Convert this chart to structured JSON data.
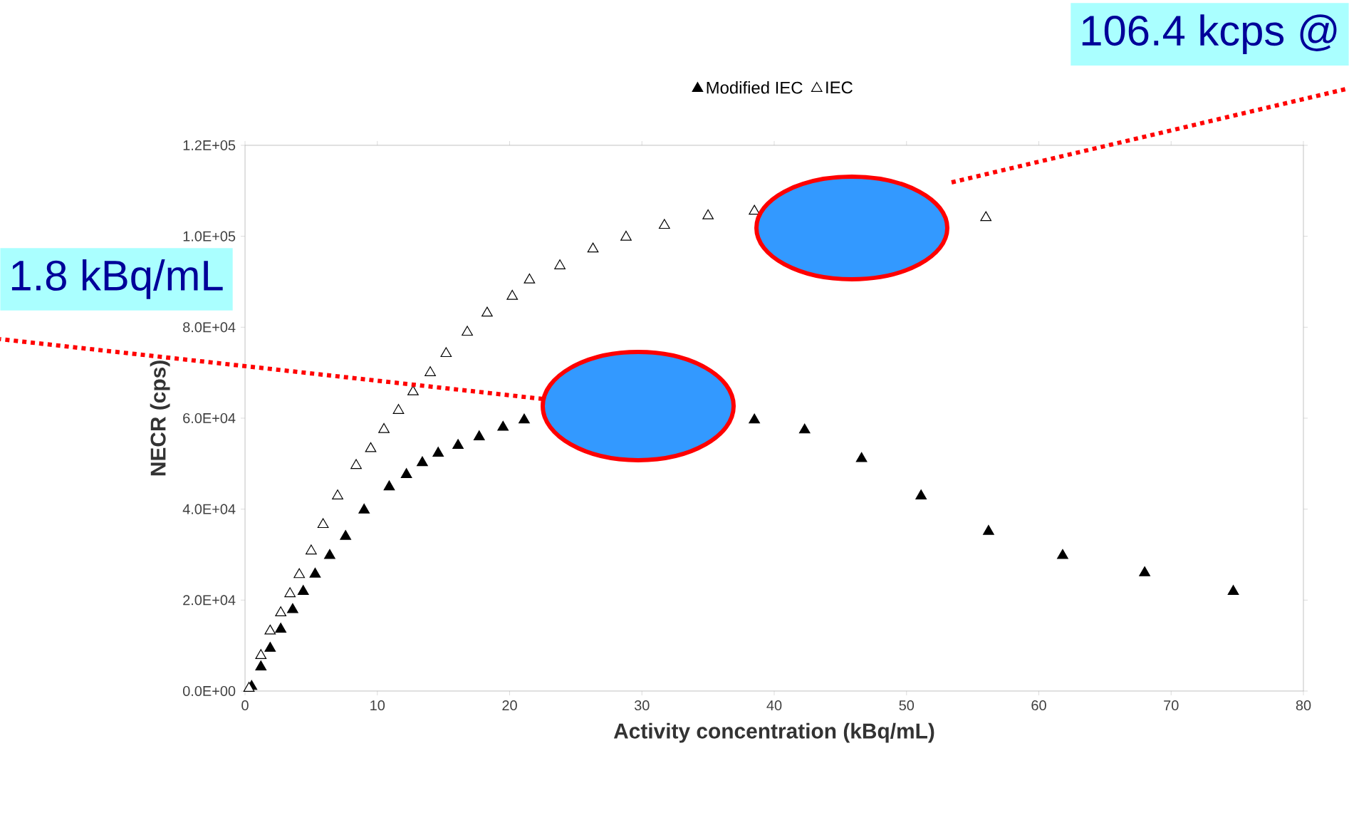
{
  "chart_data": {
    "type": "scatter",
    "xlabel": "Activity concentration (kBq/mL)",
    "ylabel": "NECR (cps)",
    "legend": "top",
    "marker": "triangle",
    "grid": false,
    "xlim": [
      0,
      80
    ],
    "xticks": [
      0,
      10,
      20,
      30,
      40,
      50,
      60,
      70,
      80
    ],
    "ylim": [
      0,
      120000
    ],
    "yticks": [
      {
        "value": 0,
        "label": "0.0E+00"
      },
      {
        "value": 20000,
        "label": "2.0E+04"
      },
      {
        "value": 40000,
        "label": "4.0E+04"
      },
      {
        "value": 60000,
        "label": "6.0E+04"
      },
      {
        "value": 80000,
        "label": "8.0E+04"
      },
      {
        "value": 100000,
        "label": "1.0E+05"
      },
      {
        "value": 120000,
        "label": "1.2E+05"
      }
    ],
    "series": [
      {
        "name": "Modified IEC",
        "color": "#000000",
        "x": [
          0.5,
          1.2,
          1.9,
          2.7,
          3.6,
          4.4,
          5.3,
          6.4,
          7.6,
          9.0,
          10.9,
          12.2,
          13.4,
          14.6,
          16.1,
          17.7,
          19.5,
          21.1,
          38.5,
          42.3,
          46.6,
          51.1,
          56.2,
          61.8,
          68.0,
          74.7
        ],
        "values": [
          1000,
          5300,
          9400,
          13600,
          17900,
          21900,
          25700,
          29800,
          34000,
          39800,
          44900,
          47600,
          50200,
          52300,
          54000,
          55900,
          58000,
          59600,
          59600,
          57400,
          51100,
          42900,
          35100,
          29800,
          26000,
          21900
        ]
      },
      {
        "name": "IEC",
        "color": "#ffffff",
        "x": [
          0.3,
          1.2,
          1.9,
          2.7,
          3.4,
          4.1,
          5.0,
          5.9,
          7.0,
          8.4,
          9.5,
          10.5,
          11.6,
          12.7,
          14.0,
          15.2,
          16.8,
          18.3,
          20.2,
          21.5,
          23.8,
          26.3,
          28.8,
          31.7,
          35.0,
          38.5,
          56.0
        ],
        "values": [
          600,
          7800,
          13200,
          17200,
          21400,
          25600,
          30800,
          36600,
          42900,
          49600,
          53300,
          57500,
          61700,
          65800,
          70000,
          74200,
          78900,
          83100,
          86800,
          90400,
          93500,
          97200,
          99800,
          102400,
          104500,
          105500,
          104100
        ]
      }
    ],
    "annotations": [
      "106.4 kcps @",
      "1.8 kBq/mL"
    ]
  }
}
